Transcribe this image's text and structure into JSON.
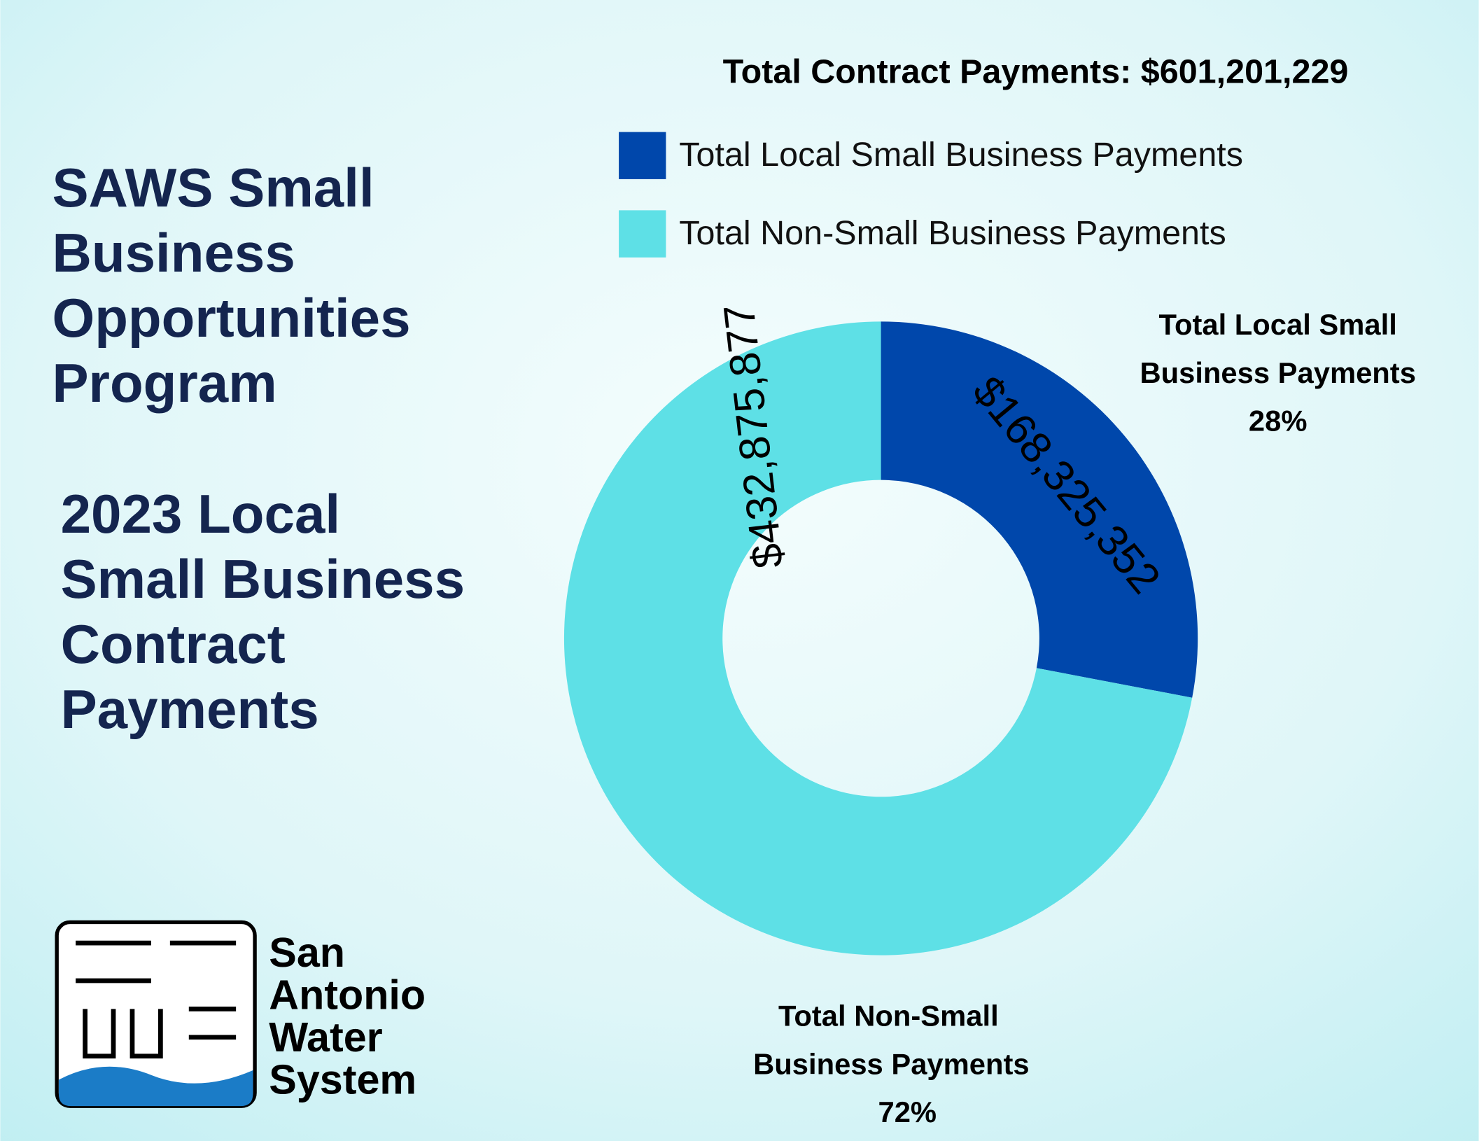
{
  "page": {
    "program_title": [
      "SAWS Small",
      "Business",
      "Opportunities",
      "Program"
    ],
    "heading": [
      "2023 Local",
      "Small Business",
      "Contract",
      "Payments"
    ],
    "logo_text": [
      "San",
      "Antonio",
      "Water",
      "System"
    ]
  },
  "chart_data": {
    "type": "donut",
    "title": "Total Contract Payments: $601,201,229",
    "categories": [
      "Total Local Small Business Payments",
      "Total Non-Small Business Payments"
    ],
    "values": [
      168325352,
      432875877
    ],
    "value_labels": [
      "$168,325,352",
      "$432,875,877"
    ],
    "colors": [
      "#0047ab",
      "#5ee0e6"
    ],
    "callouts": [
      {
        "lines": [
          "Total Local Small",
          "Business Payments"
        ],
        "percent": "28%"
      },
      {
        "lines": [
          "Total Non-Small",
          "Business Payments"
        ],
        "percent": "72%"
      }
    ]
  }
}
